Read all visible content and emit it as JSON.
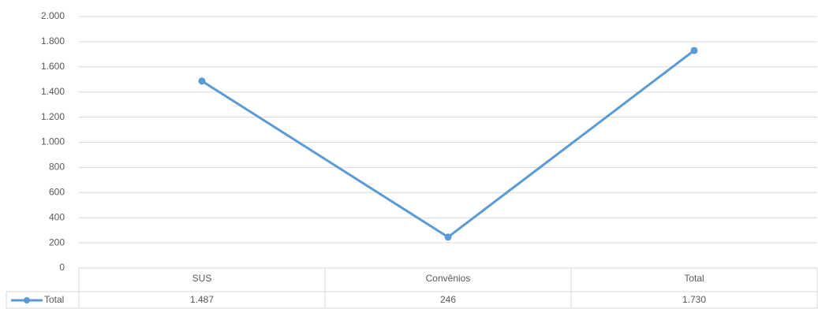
{
  "chart_data": {
    "type": "line",
    "categories": [
      "SUS",
      "Convênios",
      "Total"
    ],
    "series": [
      {
        "name": "Total",
        "color": "#5b9bd5",
        "values": [
          1487,
          246,
          1730
        ],
        "value_labels": [
          "1.487",
          "246",
          "1.730"
        ]
      }
    ],
    "ylim": [
      0,
      2000
    ],
    "yticks": [
      0,
      200,
      400,
      600,
      800,
      {
        "value": 1000,
        "label": "1.000"
      },
      {
        "value": 1200,
        "label": "1.200"
      },
      {
        "value": 1400,
        "label": "1.400"
      },
      {
        "value": 1600,
        "label": "1.600"
      },
      {
        "value": 1800,
        "label": "1.800"
      },
      {
        "value": 2000,
        "label": "2.000"
      }
    ],
    "grid": true
  }
}
